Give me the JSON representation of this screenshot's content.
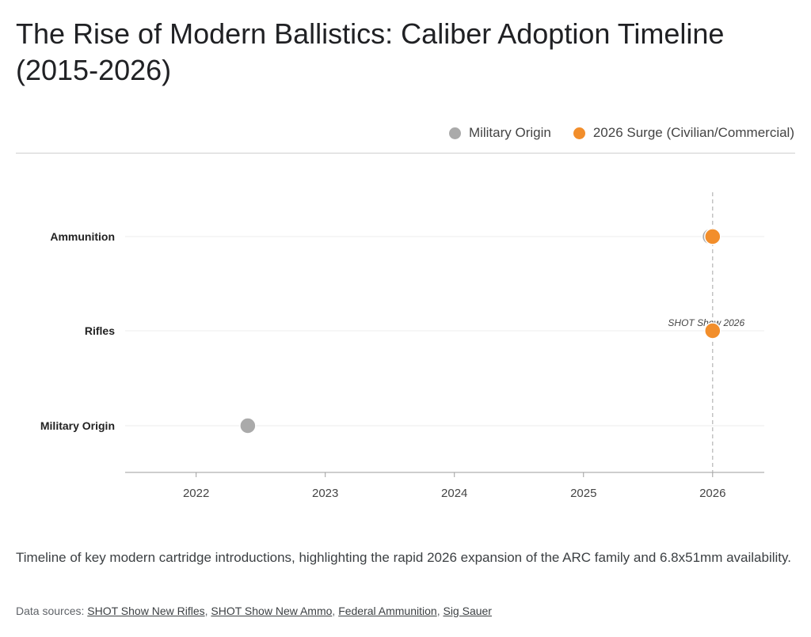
{
  "title": "The Rise of Modern Ballistics: Caliber Adoption Timeline (2015-2026)",
  "legend": [
    {
      "label": "Military Origin",
      "color": "#aaaaaa"
    },
    {
      "label": "2026 Surge (Civilian/Commercial)",
      "color": "#f28e2b"
    }
  ],
  "chart_data": {
    "type": "scatter",
    "categories": [
      "Ammunition",
      "Rifles",
      "Military Origin"
    ],
    "x_ticks": [
      "2022",
      "2023",
      "2024",
      "2025",
      "2026"
    ],
    "xlim": [
      2021.45,
      2026.4
    ],
    "reference_line": {
      "x": 2026.0,
      "label": "SHOT Show 2026"
    },
    "series": [
      {
        "name": "Military Origin",
        "color": "#aaaaaa",
        "points": [
          {
            "x": 2022.4,
            "category": "Military Origin"
          },
          {
            "x": 2025.98,
            "category": "Ammunition"
          }
        ]
      },
      {
        "name": "2026 Surge (Civilian/Commercial)",
        "color": "#f28e2b",
        "points": [
          {
            "x": 2026.0,
            "category": "Ammunition"
          },
          {
            "x": 2026.0,
            "category": "Rifles"
          }
        ]
      }
    ]
  },
  "caption": "Timeline of key modern cartridge introductions, highlighting the rapid 2026 expansion of the ARC family and 6.8x51mm availability.",
  "sources": {
    "prefix": "Data sources: ",
    "links": [
      "SHOT Show New Rifles",
      "SHOT Show New Ammo",
      "Federal Ammunition",
      "Sig Sauer"
    ],
    "separator": ", "
  }
}
